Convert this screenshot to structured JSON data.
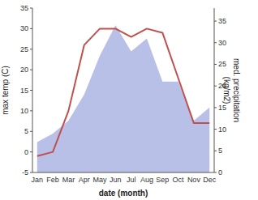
{
  "chart_data": {
    "type": "line",
    "categories": [
      "Jan",
      "Feb",
      "Mar",
      "Apr",
      "May",
      "Jun",
      "Jul",
      "Aug",
      "Sep",
      "Oct",
      "Nov",
      "Dec"
    ],
    "series": [
      {
        "type": "area",
        "axis": "y2",
        "color": "#b8c0e8",
        "values": [
          7,
          9,
          12,
          18,
          27,
          34,
          28,
          31,
          21,
          21,
          12,
          15
        ]
      },
      {
        "type": "line",
        "color": "#c0504d",
        "values": [
          -1,
          0,
          10,
          26,
          30,
          30,
          28,
          30,
          29,
          18,
          7,
          7
        ]
      }
    ],
    "xlabel": "date (month)",
    "ylabel": "max temp (C)",
    "y2label": "med. precipitation\n(kg/m2)",
    "ylim": [
      -5,
      35
    ],
    "yticks": [
      -5,
      0,
      5,
      10,
      15,
      20,
      25,
      30,
      35
    ],
    "y2lim": [
      0,
      38
    ],
    "y2ticks": [
      0,
      5,
      10,
      15,
      20,
      25,
      30,
      35
    ],
    "grid": false
  }
}
